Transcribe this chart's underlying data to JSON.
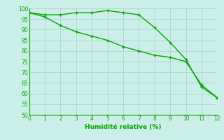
{
  "line1_x": [
    0,
    1,
    2,
    3,
    4,
    5,
    6,
    7,
    8,
    9,
    10,
    11,
    12
  ],
  "line1_y": [
    98,
    97,
    97,
    98,
    98,
    99,
    98,
    97,
    91,
    84,
    76,
    63,
    58
  ],
  "line2_x": [
    0,
    1,
    2,
    3,
    4,
    5,
    6,
    7,
    8,
    9,
    10,
    11,
    12
  ],
  "line2_y": [
    98,
    96,
    92,
    89,
    87,
    85,
    82,
    80,
    78,
    77,
    75,
    64,
    58
  ],
  "line_color": "#00aa00",
  "marker": "+",
  "xlabel": "Humidité relative (%)",
  "xlim": [
    0,
    12
  ],
  "ylim": [
    50,
    100
  ],
  "yticks": [
    50,
    55,
    60,
    65,
    70,
    75,
    80,
    85,
    90,
    95,
    100
  ],
  "xticks": [
    0,
    1,
    2,
    3,
    4,
    5,
    6,
    7,
    8,
    9,
    10,
    11,
    12
  ],
  "bg_color": "#cceee8",
  "grid_color": "#aacccc"
}
